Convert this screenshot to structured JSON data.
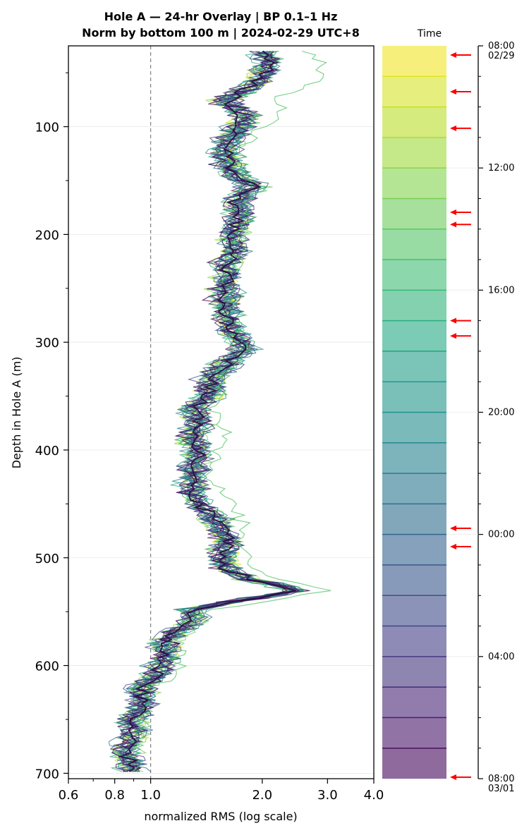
{
  "title": {
    "line1": "Hole A — 24-hr Overlay  |  BP 0.1–1 Hz",
    "line2": "Norm by bottom 100 m  |  2024-02-29 UTC+8"
  },
  "colorbar": {
    "title": "Time",
    "tick_labels": [
      {
        "time": "08:00",
        "date": "02/29",
        "hour": 0
      },
      {
        "time": "12:00",
        "date": "",
        "hour": 4
      },
      {
        "time": "16:00",
        "date": "",
        "hour": 8
      },
      {
        "time": "20:00",
        "date": "",
        "hour": 12
      },
      {
        "time": "00:00",
        "date": "",
        "hour": 16
      },
      {
        "time": "04:00",
        "date": "",
        "hour": 20
      },
      {
        "time": "08:00",
        "date": "03/01",
        "hour": 24
      }
    ],
    "marker_hours": [
      0.3,
      1.5,
      2.7,
      5.45,
      5.85,
      9.0,
      9.5,
      15.8,
      16.4,
      23.95
    ],
    "marker_color": "#ff0000",
    "segments": 24,
    "alpha": 0.6
  },
  "chart_data": {
    "type": "line",
    "xlabel": "normalized RMS  (log scale)",
    "ylabel": "Depth in Hole A (m)",
    "xscale": "log",
    "xlim": [
      0.6,
      4.0
    ],
    "ylim": [
      705,
      25
    ],
    "x_ticks": [
      {
        "value": 0.6,
        "label": "0.6"
      },
      {
        "value": 0.8,
        "label": "0.8"
      },
      {
        "value": 1.0,
        "label": "1.0"
      },
      {
        "value": 2.0,
        "label": "2.0"
      },
      {
        "value": 3.0,
        "label": "3.0"
      },
      {
        "value": 4.0,
        "label": "4.0"
      }
    ],
    "x_minor_ticks": [
      0.7,
      0.9
    ],
    "y_ticks": [
      100,
      200,
      300,
      400,
      500,
      600,
      700
    ],
    "y_minor_ticks": [
      50,
      150,
      250,
      350,
      450,
      550,
      650
    ],
    "reference_line": {
      "x": 1.0,
      "style": "dashed",
      "color": "#808080"
    },
    "grid": "horizontal",
    "colormap": "viridis",
    "series_count": 24,
    "profile": {
      "depth": [
        30,
        45,
        60,
        75,
        90,
        100,
        115,
        130,
        145,
        155,
        170,
        185,
        200,
        215,
        230,
        245,
        260,
        275,
        290,
        305,
        320,
        335,
        350,
        360,
        375,
        390,
        405,
        420,
        435,
        450,
        465,
        480,
        495,
        510,
        520,
        530,
        540,
        548,
        560,
        575,
        590,
        605,
        620,
        635,
        650,
        665,
        680,
        690,
        700
      ],
      "rms": [
        2.05,
        2.05,
        1.95,
        1.6,
        1.8,
        1.75,
        1.6,
        1.6,
        1.7,
        1.9,
        1.7,
        1.75,
        1.65,
        1.7,
        1.6,
        1.6,
        1.6,
        1.6,
        1.65,
        1.8,
        1.6,
        1.45,
        1.45,
        1.3,
        1.35,
        1.3,
        1.35,
        1.3,
        1.3,
        1.35,
        1.5,
        1.6,
        1.6,
        1.6,
        1.85,
        2.5,
        1.7,
        1.3,
        1.3,
        1.1,
        1.1,
        1.05,
        0.95,
        0.95,
        0.9,
        0.9,
        0.85,
        0.88,
        0.9
      ]
    },
    "outlier_series": {
      "hour": 6.5,
      "depth": [
        30,
        45,
        60,
        75,
        90,
        100,
        115,
        130,
        145,
        155,
        170,
        185,
        200,
        215,
        230,
        245,
        260,
        275,
        290,
        305,
        320,
        335,
        350,
        360,
        375,
        390,
        405,
        420,
        435,
        450,
        465,
        480,
        495,
        510,
        520,
        530,
        540,
        548,
        560,
        575,
        590,
        605,
        620,
        635,
        650,
        665,
        680,
        690,
        700
      ],
      "rms": [
        2.6,
        3.0,
        2.7,
        2.2,
        2.3,
        2.0,
        1.8,
        1.7,
        1.8,
        2.0,
        1.8,
        1.85,
        1.7,
        1.75,
        1.7,
        1.6,
        1.6,
        1.65,
        1.7,
        1.8,
        1.65,
        1.5,
        1.6,
        1.4,
        1.6,
        1.55,
        1.5,
        1.4,
        1.5,
        1.65,
        1.75,
        1.8,
        1.75,
        1.9,
        2.2,
        3.0,
        2.0,
        1.4,
        1.3,
        1.15,
        1.2,
        1.2,
        1.0,
        1.0,
        0.95,
        0.95,
        0.9,
        0.9,
        0.95
      ]
    }
  }
}
